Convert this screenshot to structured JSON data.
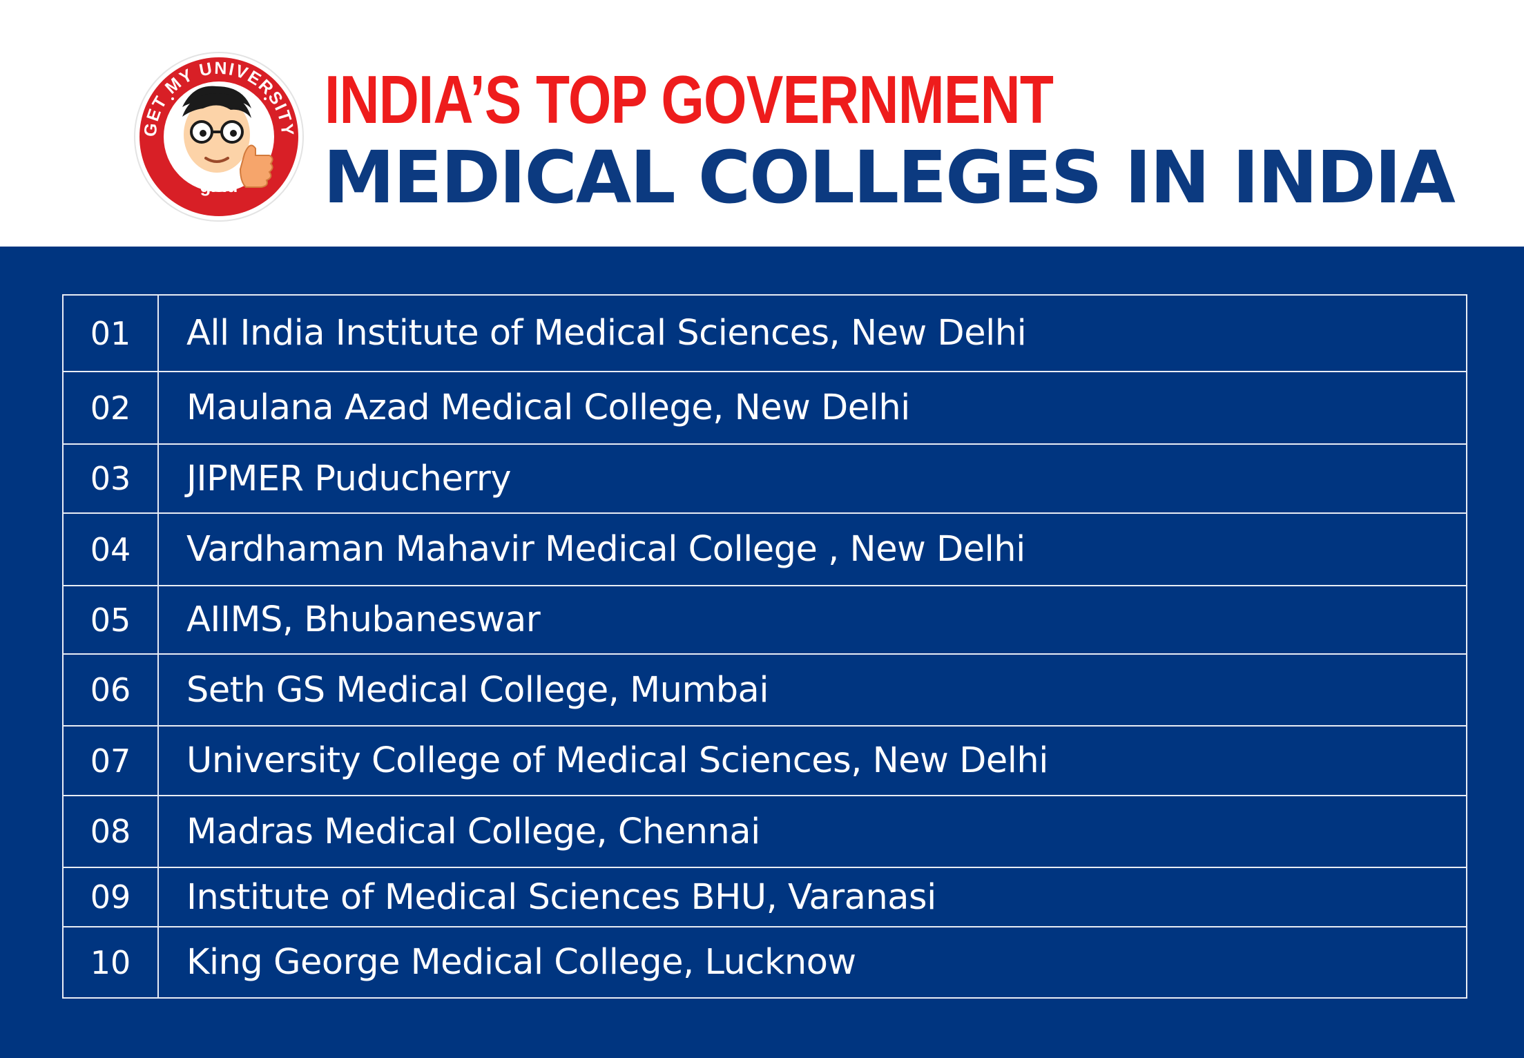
{
  "logo": {
    "ring_text": "GET MY UNIVERSITY",
    "mark_text": "gmu",
    "icon": "mascot-thumbs-up-icon"
  },
  "title": {
    "line1": "INDIA’S TOP GOVERNMENT",
    "line2": "MEDICAL COLLEGES IN INDIA"
  },
  "colleges": [
    {
      "rank": "01",
      "name": "All India Institute of Medical Sciences, New Delhi"
    },
    {
      "rank": "02",
      "name": "Maulana Azad Medical College, New Delhi"
    },
    {
      "rank": "03",
      "name": "JIPMER Puducherry"
    },
    {
      "rank": "04",
      "name": "Vardhaman Mahavir Medical College , New Delhi"
    },
    {
      "rank": "05",
      "name": "AIIMS, Bhubaneswar"
    },
    {
      "rank": "06",
      "name": "Seth GS Medical College, Mumbai"
    },
    {
      "rank": "07",
      "name": "University College of Medical Sciences, New Delhi"
    },
    {
      "rank": "08",
      "name": "Madras Medical College, Chennai"
    },
    {
      "rank": "09",
      "name": "Institute of Medical Sciences BHU, Varanasi"
    },
    {
      "rank": "10",
      "name": "King George Medical College, Lucknow"
    }
  ],
  "colors": {
    "title_red": "#ee1c1c",
    "title_blue": "#0c3a80",
    "panel_blue": "#003580",
    "border": "#e9edf5"
  }
}
